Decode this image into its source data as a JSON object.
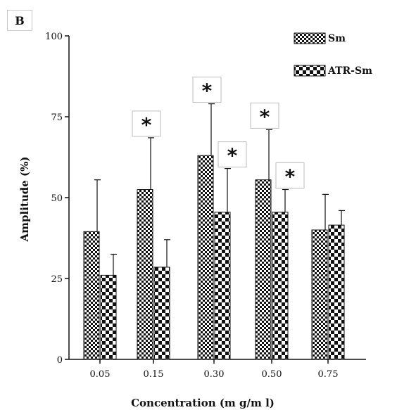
{
  "panel_label": "B",
  "chart_data": {
    "type": "bar",
    "categories": [
      "0.05",
      "0.15",
      "0.30",
      "0.50",
      "0.75"
    ],
    "series": [
      {
        "name": "Sm",
        "values": [
          39.5,
          52.5,
          63,
          55.5,
          40
        ],
        "errors": [
          16,
          16,
          16,
          15.5,
          11
        ],
        "significant": [
          false,
          true,
          true,
          true,
          false
        ],
        "pattern": "small-check",
        "color": "#111111"
      },
      {
        "name": "ATR-Sm",
        "values": [
          26,
          28.5,
          45.5,
          45.5,
          41.5
        ],
        "errors": [
          6.5,
          8.5,
          13.5,
          7,
          4.5
        ],
        "significant": [
          false,
          false,
          true,
          true,
          false
        ],
        "pattern": "large-check",
        "color": "#111111"
      }
    ],
    "significance_marker": "*",
    "title": "",
    "xlabel": "Concentration (m g/m l)",
    "ylabel": "Amplitude (%)",
    "ylim": [
      0,
      100
    ],
    "yticks": [
      0,
      25,
      50,
      75,
      100
    ],
    "legend_position": "top-right",
    "grid": false
  }
}
